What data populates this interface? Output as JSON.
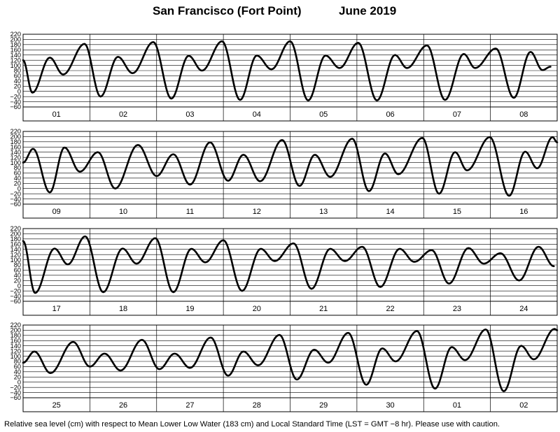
{
  "title": {
    "location": "San Francisco (Fort Point)",
    "month": "June   2019"
  },
  "footer": "Relative sea level (cm) with respect to Mean Lower Low Water (183 cm) and Local Standard Time (LST = GMT −8 hr). Please use with caution.",
  "chart_data": {
    "type": "line",
    "units": "cm",
    "y_ticks": [
      "220",
      "200",
      "180",
      "160",
      "140",
      "120",
      "100",
      "80",
      "60",
      "40",
      "20",
      "0",
      "−20",
      "−40",
      "−60"
    ],
    "panels": [
      {
        "days": [
          "01",
          "02",
          "03",
          "04",
          "05",
          "06",
          "07",
          "08"
        ],
        "extrema": [
          [
            0.0,
            120
          ],
          [
            0.14,
            -5
          ],
          [
            0.4,
            130
          ],
          [
            0.6,
            65
          ],
          [
            0.92,
            183
          ],
          [
            1.16,
            -20
          ],
          [
            1.42,
            133
          ],
          [
            1.64,
            70
          ],
          [
            1.95,
            190
          ],
          [
            2.22,
            -28
          ],
          [
            2.48,
            137
          ],
          [
            2.68,
            80
          ],
          [
            2.98,
            193
          ],
          [
            3.25,
            -33
          ],
          [
            3.5,
            138
          ],
          [
            3.72,
            85
          ],
          [
            4.0,
            193
          ],
          [
            4.27,
            -35
          ],
          [
            4.53,
            138
          ],
          [
            4.74,
            90
          ],
          [
            5.02,
            187
          ],
          [
            5.3,
            -35
          ],
          [
            5.57,
            140
          ],
          [
            5.75,
            90
          ],
          [
            6.05,
            177
          ],
          [
            6.32,
            -33
          ],
          [
            6.6,
            144
          ],
          [
            6.77,
            90
          ],
          [
            7.08,
            165
          ],
          [
            7.35,
            -25
          ],
          [
            7.6,
            152
          ],
          [
            7.78,
            82
          ],
          [
            7.9,
            95
          ]
        ]
      },
      {
        "days": [
          "09",
          "10",
          "11",
          "12",
          "13",
          "14",
          "15",
          "16"
        ],
        "extrema": [
          [
            0.0,
            100
          ],
          [
            0.15,
            153
          ],
          [
            0.4,
            -15
          ],
          [
            0.62,
            158
          ],
          [
            0.85,
            65
          ],
          [
            1.12,
            140
          ],
          [
            1.38,
            0
          ],
          [
            1.72,
            168
          ],
          [
            2.0,
            48
          ],
          [
            2.25,
            132
          ],
          [
            2.5,
            15
          ],
          [
            2.8,
            178
          ],
          [
            3.07,
            30
          ],
          [
            3.3,
            130
          ],
          [
            3.55,
            28
          ],
          [
            3.88,
            187
          ],
          [
            4.14,
            10
          ],
          [
            4.37,
            130
          ],
          [
            4.6,
            45
          ],
          [
            4.93,
            192
          ],
          [
            5.18,
            -10
          ],
          [
            5.42,
            135
          ],
          [
            5.62,
            55
          ],
          [
            5.98,
            195
          ],
          [
            6.23,
            -20
          ],
          [
            6.47,
            140
          ],
          [
            6.65,
            70
          ],
          [
            6.99,
            198
          ],
          [
            7.28,
            -28
          ],
          [
            7.52,
            142
          ],
          [
            7.7,
            78
          ],
          [
            7.93,
            198
          ],
          [
            8.0,
            178
          ]
        ]
      },
      {
        "days": [
          "17",
          "18",
          "19",
          "20",
          "21",
          "22",
          "23",
          "24"
        ],
        "extrema": [
          [
            0.0,
            172
          ],
          [
            0.18,
            -28
          ],
          [
            0.47,
            143
          ],
          [
            0.67,
            82
          ],
          [
            0.93,
            190
          ],
          [
            1.2,
            -25
          ],
          [
            1.49,
            143
          ],
          [
            1.7,
            85
          ],
          [
            1.98,
            183
          ],
          [
            2.25,
            -25
          ],
          [
            2.52,
            142
          ],
          [
            2.73,
            90
          ],
          [
            3.0,
            175
          ],
          [
            3.28,
            -20
          ],
          [
            3.56,
            142
          ],
          [
            3.77,
            95
          ],
          [
            4.05,
            163
          ],
          [
            4.32,
            -12
          ],
          [
            4.6,
            142
          ],
          [
            4.82,
            95
          ],
          [
            5.08,
            150
          ],
          [
            5.35,
            -5
          ],
          [
            5.64,
            142
          ],
          [
            5.86,
            92
          ],
          [
            6.12,
            137
          ],
          [
            6.38,
            8
          ],
          [
            6.67,
            145
          ],
          [
            6.9,
            85
          ],
          [
            7.15,
            125
          ],
          [
            7.43,
            20
          ],
          [
            7.72,
            150
          ],
          [
            7.95,
            75
          ]
        ]
      },
      {
        "days": [
          "25",
          "26",
          "27",
          "28",
          "29",
          "30",
          "01",
          "02"
        ],
        "extrema": [
          [
            0.0,
            75
          ],
          [
            0.17,
            118
          ],
          [
            0.41,
            35
          ],
          [
            0.75,
            155
          ],
          [
            1.0,
            60
          ],
          [
            1.22,
            110
          ],
          [
            1.46,
            45
          ],
          [
            1.78,
            163
          ],
          [
            2.04,
            50
          ],
          [
            2.27,
            110
          ],
          [
            2.5,
            55
          ],
          [
            2.81,
            172
          ],
          [
            3.07,
            25
          ],
          [
            3.3,
            118
          ],
          [
            3.52,
            65
          ],
          [
            3.84,
            182
          ],
          [
            4.1,
            10
          ],
          [
            4.36,
            125
          ],
          [
            4.57,
            75
          ],
          [
            4.87,
            190
          ],
          [
            5.14,
            -10
          ],
          [
            5.38,
            130
          ],
          [
            5.58,
            80
          ],
          [
            5.9,
            197
          ],
          [
            6.17,
            -25
          ],
          [
            6.42,
            135
          ],
          [
            6.62,
            85
          ],
          [
            6.93,
            203
          ],
          [
            7.2,
            -35
          ],
          [
            7.46,
            140
          ],
          [
            7.65,
            88
          ],
          [
            7.96,
            205
          ],
          [
            8.0,
            200
          ]
        ]
      }
    ]
  }
}
